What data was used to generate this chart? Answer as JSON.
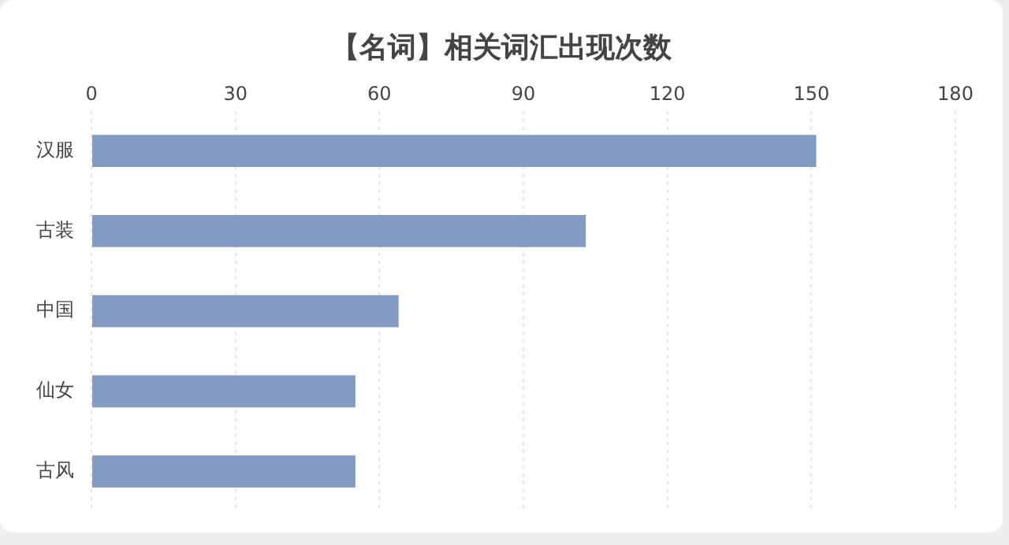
{
  "chart_data": {
    "type": "bar",
    "orientation": "horizontal",
    "title": "【名词】相关词汇出现次数",
    "categories": [
      "汉服",
      "古装",
      "中国",
      "仙女",
      "古风"
    ],
    "values": [
      151,
      103,
      64,
      55,
      55
    ],
    "color": "#839bc2",
    "xlim": [
      0,
      180
    ],
    "xticks": [
      0,
      30,
      60,
      90,
      120,
      150,
      180
    ],
    "grid": "x"
  }
}
